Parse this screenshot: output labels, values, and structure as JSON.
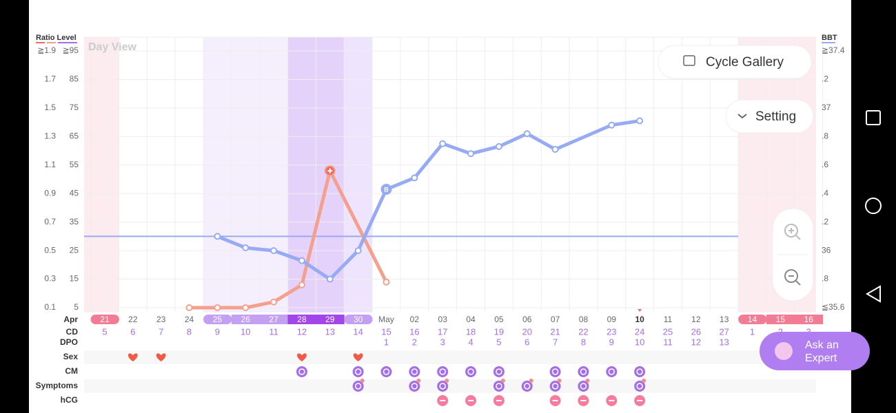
{
  "ui": {
    "day_view": "Day View",
    "cycle_gallery": "Cycle Gallery",
    "setting": "Setting",
    "ask_expert": [
      "Ask an",
      "Expert"
    ],
    "bbt_marker": "B"
  },
  "chart_data": {
    "type": "line",
    "left_axis_title": "Ratio Level",
    "right_axis_title": "BBT",
    "month_label": "Apr",
    "categories": [
      "21",
      "22",
      "23",
      "24",
      "25",
      "26",
      "27",
      "28",
      "29",
      "30",
      "May",
      "02",
      "03",
      "04",
      "05",
      "06",
      "07",
      "08",
      "09",
      "10",
      "11",
      "12",
      "13",
      "14",
      "15",
      "16"
    ],
    "rows": [
      {
        "label": "CD",
        "values": [
          5,
          6,
          7,
          8,
          9,
          10,
          11,
          12,
          13,
          14,
          15,
          16,
          17,
          18,
          19,
          20,
          21,
          22,
          23,
          24,
          25,
          26,
          27,
          1,
          2,
          3
        ]
      },
      {
        "label": "DPO",
        "values": [
          null,
          null,
          null,
          null,
          null,
          null,
          null,
          null,
          null,
          null,
          1,
          2,
          3,
          4,
          5,
          6,
          7,
          8,
          9,
          10,
          11,
          12,
          13,
          null,
          null,
          null
        ]
      }
    ],
    "records": [
      {
        "label": "Sex",
        "days": [
          1,
          2,
          7,
          9
        ]
      },
      {
        "label": "CM",
        "days": [
          7,
          9,
          10,
          11,
          12,
          13,
          14,
          16,
          17,
          18,
          19
        ]
      },
      {
        "label": "Symptoms",
        "days": [
          9,
          11,
          12,
          14,
          15,
          16,
          17,
          19
        ]
      },
      {
        "label": "hCG",
        "days": [
          12,
          13,
          14,
          16,
          17,
          18,
          19
        ]
      }
    ],
    "ylim": [
      5,
      95
    ],
    "yticks": [
      5,
      15,
      25,
      35,
      45,
      55,
      65,
      75,
      85,
      {
        "value": 95,
        "label": "≧95"
      }
    ],
    "ratio_ticks": [
      {
        "value": 5,
        "label": "0.1"
      },
      {
        "value": 15,
        "label": "0.3"
      },
      {
        "value": 25,
        "label": "0.5"
      },
      {
        "value": 35,
        "label": "0.7"
      },
      {
        "value": 45,
        "label": "0.9"
      },
      {
        "value": 55,
        "label": "1.1"
      },
      {
        "value": 65,
        "label": "1.3"
      },
      {
        "value": 75,
        "label": "1.5"
      },
      {
        "value": 85,
        "label": "1.7"
      },
      {
        "value": 95,
        "label": "≧1.9"
      }
    ],
    "y2lim": [
      35.6,
      37.4
    ],
    "y2ticks": [
      {
        "value": 35.6,
        "label": "≦35.6"
      },
      {
        "value": 35.8,
        "label": ".8"
      },
      36,
      {
        "value": 36.2,
        "label": ".2"
      },
      {
        "value": 36.4,
        "label": ".4"
      },
      {
        "value": 36.6,
        "label": ".6"
      },
      {
        "value": 36.8,
        "label": ".8"
      },
      37,
      {
        "value": 37.2,
        "label": ".2"
      },
      {
        "value": 37.4,
        "label": "≧37.4"
      }
    ],
    "cover_line": 36.1,
    "series": [
      {
        "color": "#f4a08e",
        "x": [
          3,
          4,
          5,
          6,
          7,
          8,
          10
        ],
        "values": [
          5,
          5,
          5,
          7,
          13,
          53,
          14
        ]
      },
      {
        "color": "#96abf3",
        "axis": "y2",
        "x": [
          4,
          5,
          6,
          7,
          8,
          9,
          10,
          11,
          12,
          13,
          14,
          15,
          16,
          18,
          19
        ],
        "values": [
          36.1,
          36.02,
          36.0,
          35.93,
          35.8,
          36.0,
          36.43,
          36.51,
          36.75,
          36.68,
          36.73,
          36.82,
          36.71,
          36.88,
          36.91
        ]
      }
    ]
  }
}
